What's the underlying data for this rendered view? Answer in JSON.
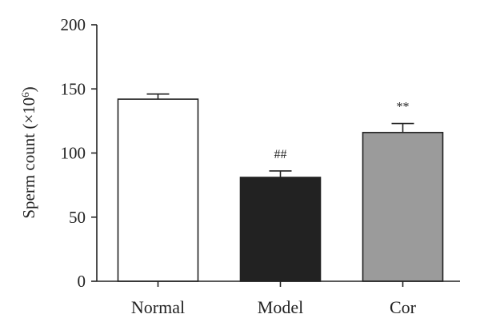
{
  "chart_data": {
    "type": "bar",
    "title": "",
    "xlabel": "",
    "ylabel": "Sperm count (×10",
    "ylabel_sup": "6",
    "ylabel_close": ")",
    "ylim": [
      0,
      200
    ],
    "yticks": [
      0,
      50,
      100,
      150,
      200
    ],
    "grid": false,
    "categories": [
      "Normal",
      "Model",
      "Cor"
    ],
    "values": [
      142,
      81,
      116
    ],
    "errors": [
      4,
      5,
      7
    ],
    "bar_colors": [
      "#ffffff",
      "#222222",
      "#9b9b9b"
    ],
    "annotations": [
      "",
      "##",
      "**"
    ]
  }
}
